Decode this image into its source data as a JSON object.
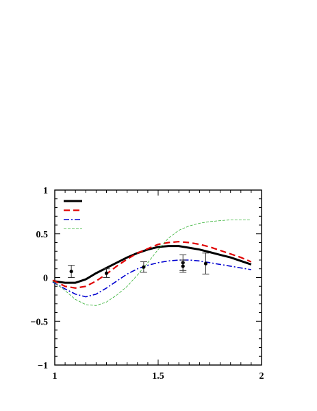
{
  "chart_data": {
    "type": "line",
    "title": "",
    "xlabel": "",
    "ylabel": "",
    "xlim": [
      1.0,
      2.0
    ],
    "ylim": [
      -1.0,
      1.0
    ],
    "x_ticks": [
      1,
      1.5,
      2
    ],
    "x_tick_labels": [
      "1",
      "1.5",
      "2"
    ],
    "y_ticks": [
      -1,
      -0.5,
      0,
      0.5,
      1
    ],
    "y_tick_labels": [
      "−1",
      "−0.5",
      "0",
      "0.5",
      "1"
    ],
    "grid": false,
    "legend": {
      "placement": "top-left",
      "labels_shown": false
    },
    "series": [
      {
        "style": "solid-thick",
        "color": "#000000",
        "x": [
          0.99,
          1.05,
          1.1,
          1.15,
          1.2,
          1.25,
          1.3,
          1.35,
          1.4,
          1.45,
          1.5,
          1.55,
          1.6,
          1.65,
          1.7,
          1.75,
          1.8,
          1.85,
          1.9,
          1.95
        ],
        "y": [
          -0.04,
          -0.06,
          -0.06,
          -0.02,
          0.05,
          0.11,
          0.17,
          0.23,
          0.28,
          0.32,
          0.35,
          0.36,
          0.36,
          0.34,
          0.32,
          0.29,
          0.26,
          0.23,
          0.19,
          0.15
        ]
      },
      {
        "style": "dashed",
        "color": "#e00000",
        "x": [
          0.99,
          1.05,
          1.1,
          1.15,
          1.2,
          1.25,
          1.3,
          1.35,
          1.4,
          1.45,
          1.5,
          1.55,
          1.6,
          1.65,
          1.7,
          1.75,
          1.8,
          1.85,
          1.9,
          1.95
        ],
        "y": [
          -0.03,
          -0.1,
          -0.12,
          -0.1,
          -0.04,
          0.04,
          0.13,
          0.21,
          0.28,
          0.33,
          0.38,
          0.4,
          0.41,
          0.4,
          0.38,
          0.35,
          0.31,
          0.27,
          0.23,
          0.18
        ]
      },
      {
        "style": "dash-dot",
        "color": "#0000d0",
        "x": [
          0.99,
          1.05,
          1.1,
          1.15,
          1.2,
          1.25,
          1.3,
          1.35,
          1.4,
          1.45,
          1.5,
          1.55,
          1.6,
          1.65,
          1.7,
          1.75,
          1.8,
          1.85,
          1.9,
          1.95
        ],
        "y": [
          -0.05,
          -0.13,
          -0.19,
          -0.22,
          -0.19,
          -0.12,
          -0.04,
          0.04,
          0.1,
          0.14,
          0.17,
          0.19,
          0.2,
          0.2,
          0.19,
          0.17,
          0.15,
          0.13,
          0.11,
          0.09
        ]
      },
      {
        "style": "thin-dashed",
        "color": "#30b030",
        "x": [
          0.99,
          1.05,
          1.1,
          1.15,
          1.2,
          1.25,
          1.3,
          1.35,
          1.4,
          1.45,
          1.5,
          1.55,
          1.6,
          1.65,
          1.7,
          1.75,
          1.8,
          1.85,
          1.9,
          1.95
        ],
        "y": [
          -0.04,
          -0.15,
          -0.25,
          -0.31,
          -0.32,
          -0.28,
          -0.2,
          -0.1,
          0.03,
          0.17,
          0.32,
          0.45,
          0.54,
          0.59,
          0.62,
          0.64,
          0.65,
          0.66,
          0.66,
          0.66
        ]
      }
    ],
    "data_points": [
      {
        "x": 1.08,
        "y": 0.07,
        "err": 0.07
      },
      {
        "x": 1.25,
        "y": 0.05,
        "err": 0.05
      },
      {
        "x": 1.43,
        "y": 0.12,
        "err": 0.06
      },
      {
        "x": 1.62,
        "y": 0.17,
        "err": 0.09
      },
      {
        "x": 1.62,
        "y": 0.13,
        "err": 0.07
      },
      {
        "x": 1.73,
        "y": 0.16,
        "err": 0.12
      }
    ]
  }
}
